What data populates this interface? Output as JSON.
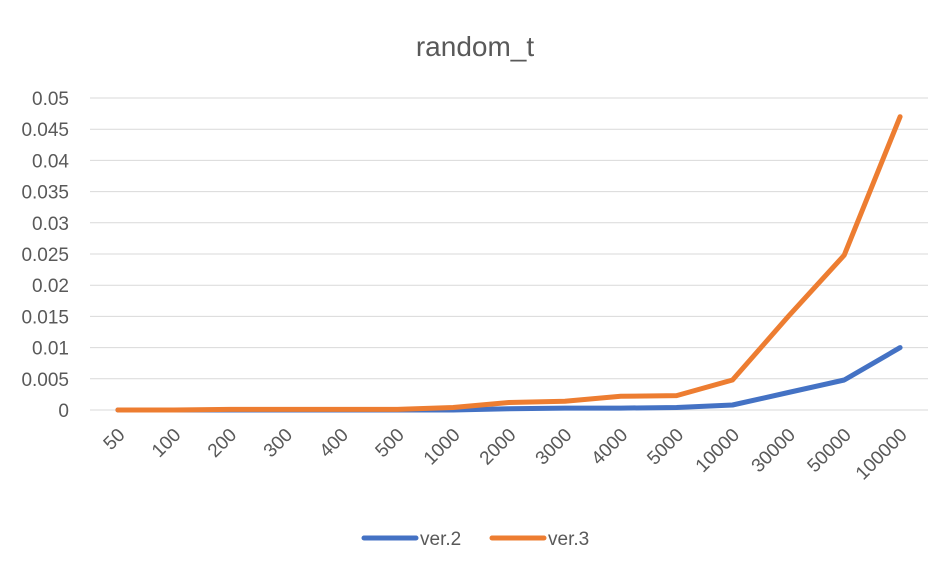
{
  "chart_data": {
    "type": "line",
    "title": "random_t",
    "xlabel": "",
    "ylabel": "",
    "categories": [
      "50",
      "100",
      "200",
      "300",
      "400",
      "500",
      "1000",
      "2000",
      "3000",
      "4000",
      "5000",
      "10000",
      "30000",
      "50000",
      "100000"
    ],
    "yticks": [
      "0",
      "0.005",
      "0.01",
      "0.015",
      "0.02",
      "0.025",
      "0.03",
      "0.035",
      "0.04",
      "0.045",
      "0.05"
    ],
    "ylim": [
      0,
      0.05
    ],
    "grid": true,
    "legend_position": "bottom",
    "series": [
      {
        "name": "ver.2",
        "color": "#4472C4",
        "values": [
          0.0,
          0.0,
          0.0,
          0.0,
          0.0,
          0.0,
          0.0,
          0.0002,
          0.0003,
          0.0003,
          0.0004,
          0.0008,
          0.0028,
          0.0048,
          0.01
        ]
      },
      {
        "name": "ver.3",
        "color": "#ED7D31",
        "values": [
          0.0,
          0.0,
          0.0001,
          0.0001,
          0.0001,
          0.0001,
          0.0004,
          0.0012,
          0.0014,
          0.0022,
          0.0023,
          0.0048,
          0.015,
          0.0248,
          0.047
        ]
      }
    ]
  }
}
